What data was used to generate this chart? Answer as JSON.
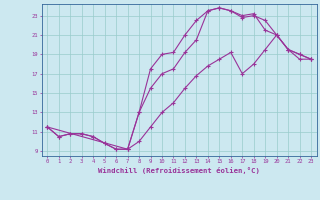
{
  "xlabel": "Windchill (Refroidissement éolien,°C)",
  "background_color": "#cce8f0",
  "grid_color": "#99cccc",
  "line_color": "#993399",
  "spine_color": "#336699",
  "xlim": [
    -0.5,
    23.5
  ],
  "ylim": [
    8.5,
    24.2
  ],
  "xticks": [
    0,
    1,
    2,
    3,
    4,
    5,
    6,
    7,
    8,
    9,
    10,
    11,
    12,
    13,
    14,
    15,
    16,
    17,
    18,
    19,
    20,
    21,
    22,
    23
  ],
  "yticks": [
    9,
    11,
    13,
    15,
    17,
    19,
    21,
    23
  ],
  "curve1_x": [
    0,
    1,
    2,
    3,
    4,
    5,
    6,
    7,
    8,
    9,
    10,
    11,
    12,
    13,
    14,
    15,
    16,
    17,
    18,
    19,
    20,
    21,
    22,
    23
  ],
  "curve1_y": [
    11.5,
    10.5,
    10.8,
    10.8,
    10.5,
    9.8,
    9.2,
    9.2,
    13.0,
    17.5,
    19.0,
    19.2,
    21.0,
    22.5,
    23.5,
    23.8,
    23.5,
    23.0,
    23.2,
    21.5,
    21.0,
    19.5,
    19.0,
    18.5
  ],
  "curve2_x": [
    0,
    7,
    8,
    9,
    10,
    11,
    12,
    13,
    14,
    15,
    16,
    17,
    18,
    19,
    20,
    21,
    22,
    23
  ],
  "curve2_y": [
    11.5,
    9.2,
    13.0,
    15.5,
    17.0,
    17.5,
    19.2,
    20.5,
    23.5,
    23.8,
    23.5,
    22.8,
    23.0,
    22.5,
    21.0,
    19.5,
    19.0,
    18.5
  ],
  "curve3_x": [
    0,
    1,
    2,
    3,
    4,
    5,
    6,
    7,
    8,
    9,
    10,
    11,
    12,
    13,
    14,
    15,
    16,
    17,
    18,
    19,
    20,
    21,
    22,
    23
  ],
  "curve3_y": [
    11.5,
    10.5,
    10.8,
    10.8,
    10.5,
    9.8,
    9.2,
    9.2,
    10.0,
    11.5,
    13.0,
    14.0,
    15.5,
    16.8,
    17.8,
    18.5,
    19.2,
    17.0,
    18.0,
    19.5,
    21.0,
    19.5,
    18.5,
    18.5
  ],
  "tick_fontsize": 4.0,
  "xlabel_fontsize": 5.2,
  "linewidth": 0.8,
  "markersize": 2.5
}
